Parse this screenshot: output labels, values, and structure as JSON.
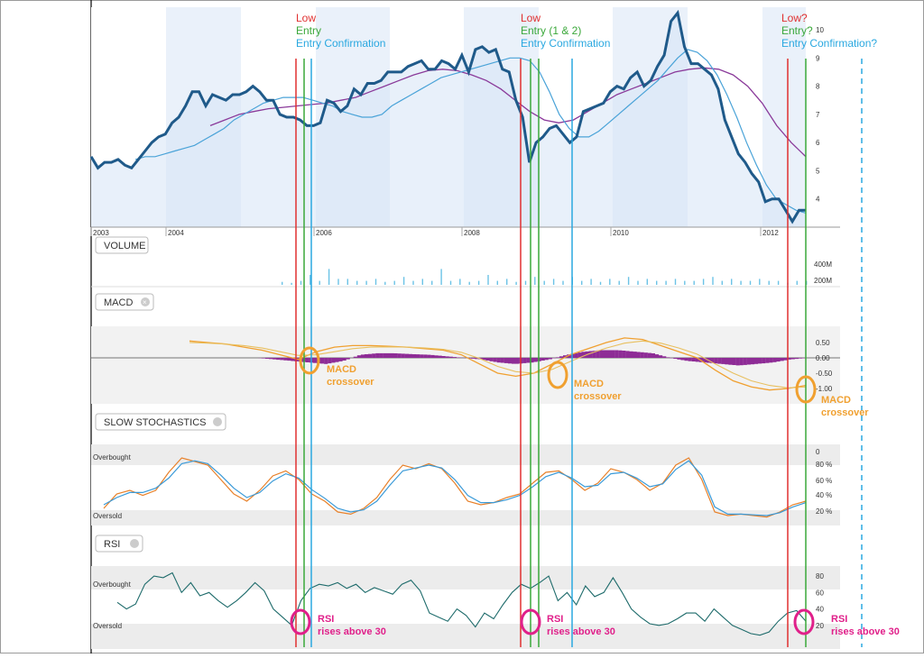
{
  "price": {
    "x_ticks": [
      "2003",
      "2004",
      "2006",
      "2008",
      "2010",
      "2012"
    ],
    "y_ticks": [
      "10",
      "9",
      "8",
      "7",
      "6",
      "5",
      "4"
    ],
    "values": [
      5.5,
      5.1,
      5.3,
      5.3,
      5.4,
      5.2,
      5.1,
      5.4,
      5.7,
      6.0,
      6.2,
      6.3,
      6.7,
      6.9,
      7.3,
      7.8,
      7.8,
      7.3,
      7.7,
      7.6,
      7.5,
      7.7,
      7.7,
      7.8,
      8.0,
      7.8,
      7.5,
      7.5,
      7.0,
      6.9,
      6.9,
      6.8,
      6.6,
      6.6,
      6.7,
      7.5,
      7.4,
      7.1,
      7.3,
      7.9,
      7.7,
      8.1,
      8.1,
      8.2,
      8.5,
      8.5,
      8.5,
      8.7,
      8.8,
      8.9,
      8.6,
      8.6,
      8.9,
      8.8,
      8.6,
      9.1,
      8.5,
      9.3,
      9.4,
      9.2,
      9.3,
      8.6,
      8.5,
      7.5,
      6.9,
      5.3,
      6.0,
      6.2,
      6.5,
      6.6,
      6.3,
      6.0,
      6.2,
      7.1,
      7.2,
      7.3,
      7.4,
      7.8,
      8.0,
      7.9,
      8.3,
      8.5,
      8.0,
      8.2,
      8.7,
      9.1,
      10.3,
      10.6,
      9.4,
      8.8,
      8.8,
      8.6,
      8.4,
      7.9,
      6.8,
      6.2,
      5.6,
      5.3,
      4.9,
      4.6,
      3.9,
      4.0,
      4.0,
      3.6,
      3.2,
      3.6,
      3.6
    ],
    "ema": [
      5.4,
      5.5,
      5.5,
      5.6,
      5.7,
      5.8,
      5.9,
      6.1,
      6.3,
      6.5,
      6.8,
      7.0,
      7.2,
      7.4,
      7.5,
      7.6,
      7.6,
      7.6,
      7.5,
      7.4,
      7.3,
      7.1,
      7.0,
      6.9,
      6.9,
      7.0,
      7.3,
      7.5,
      7.7,
      7.9,
      8.1,
      8.3,
      8.4,
      8.5,
      8.6,
      8.7,
      8.8,
      8.9,
      9.0,
      9.0,
      8.9,
      8.5,
      7.8,
      7.0,
      6.5,
      6.2,
      6.2,
      6.4,
      6.7,
      7.0,
      7.3,
      7.6,
      7.9,
      8.2,
      8.6,
      9.0,
      9.3,
      9.2,
      8.9,
      8.4,
      7.7,
      6.9,
      6.0,
      5.2,
      4.5,
      4.0,
      3.8,
      3.6,
      3.5
    ],
    "sma": [
      6.6,
      6.8,
      7.0,
      7.1,
      7.2,
      7.25,
      7.3,
      7.35,
      7.4,
      7.5,
      7.6,
      7.8,
      8.0,
      8.2,
      8.4,
      8.55,
      8.6,
      8.55,
      8.4,
      8.2,
      7.9,
      7.5,
      7.1,
      6.8,
      6.7,
      6.8,
      7.1,
      7.4,
      7.7,
      7.9,
      8.1,
      8.3,
      8.5,
      8.6,
      8.65,
      8.6,
      8.4,
      8.0,
      7.4,
      6.6,
      6.0,
      5.5
    ]
  },
  "volume": {
    "label": "VOLUME",
    "y_ticks": [
      "400M",
      "200M"
    ],
    "bars": [
      0.15,
      0.1,
      0.2,
      0.5,
      0.2,
      0.8,
      0.3,
      0.3,
      0.2,
      0.2,
      0.3,
      0.15,
      0.2,
      0.4,
      0.2,
      0.3,
      0.2,
      0.8,
      0.2,
      0.3,
      0.15,
      0.2,
      0.5,
      0.2,
      0.3,
      0.15,
      0.2,
      0.4,
      0.2,
      0.3,
      0.2,
      0.4,
      0.2,
      0.3,
      0.15,
      0.3,
      0.2,
      0.4,
      0.2,
      0.3,
      0.2,
      0.2,
      0.3,
      0.2,
      0.2,
      0.3,
      0.4,
      0.2,
      0.3,
      0.2,
      0.2,
      0.3,
      0.2,
      0.2,
      0.1,
      0.2,
      0.2
    ]
  },
  "macd": {
    "label": "MACD",
    "y_ticks": [
      "0.50",
      "0.00",
      "-0.50",
      "-1.00"
    ],
    "macd": [
      0.55,
      0.5,
      0.45,
      0.35,
      0.25,
      0.1,
      -0.05,
      0.2,
      0.35,
      0.4,
      0.4,
      0.38,
      0.35,
      0.3,
      0.25,
      0.1,
      -0.2,
      -0.5,
      -0.6,
      -0.5,
      -0.2,
      0.1,
      0.3,
      0.5,
      0.65,
      0.6,
      0.4,
      0.2,
      0.0,
      -0.4,
      -0.75,
      -0.95,
      -1.05,
      -1.0,
      -0.9
    ],
    "signal": [
      0.5,
      0.48,
      0.45,
      0.4,
      0.32,
      0.2,
      0.08,
      0.1,
      0.2,
      0.3,
      0.35,
      0.36,
      0.35,
      0.32,
      0.28,
      0.18,
      -0.02,
      -0.28,
      -0.45,
      -0.5,
      -0.38,
      -0.12,
      0.12,
      0.32,
      0.48,
      0.55,
      0.48,
      0.32,
      0.12,
      -0.2,
      -0.5,
      -0.75,
      -0.9,
      -0.98,
      -0.95
    ],
    "hist": [
      0.0,
      0.0,
      0.0,
      -0.05,
      -0.1,
      -0.15,
      -0.2,
      -0.1,
      0.1,
      0.15,
      0.15,
      0.12,
      0.1,
      0.05,
      0.0,
      -0.05,
      -0.15,
      -0.2,
      -0.15,
      -0.05,
      0.1,
      0.2,
      0.25,
      0.25,
      0.2,
      0.15,
      0.0,
      -0.1,
      -0.15,
      -0.2,
      -0.25,
      -0.2,
      -0.15,
      -0.05,
      0.0
    ]
  },
  "stoch": {
    "label": "SLOW STOCHASTICS",
    "overbought": "Overbought",
    "oversold": "Oversold",
    "y_ticks": [
      "0",
      "80 %",
      "60 %",
      "40 %",
      "20 %"
    ],
    "k": [
      20,
      40,
      45,
      38,
      45,
      70,
      90,
      85,
      80,
      60,
      40,
      30,
      45,
      65,
      72,
      60,
      40,
      30,
      15,
      12,
      20,
      35,
      60,
      80,
      75,
      82,
      75,
      55,
      30,
      25,
      28,
      35,
      40,
      55,
      70,
      72,
      60,
      45,
      55,
      75,
      70,
      60,
      45,
      55,
      80,
      90,
      60,
      15,
      10,
      12,
      10,
      8,
      15,
      25,
      30
    ],
    "d": [
      25,
      35,
      42,
      42,
      48,
      62,
      82,
      86,
      82,
      66,
      48,
      35,
      42,
      58,
      68,
      62,
      46,
      34,
      20,
      15,
      18,
      30,
      52,
      72,
      76,
      80,
      76,
      60,
      38,
      28,
      28,
      32,
      38,
      50,
      64,
      70,
      62,
      50,
      52,
      68,
      70,
      62,
      50,
      54,
      74,
      86,
      66,
      22,
      12,
      12,
      11,
      10,
      14,
      22,
      28
    ]
  },
  "rsi": {
    "label": "RSI",
    "overbought": "Overbought",
    "oversold": "Oversold",
    "y_ticks": [
      "80",
      "60",
      "40",
      "20"
    ],
    "values": [
      48,
      40,
      46,
      70,
      80,
      78,
      84,
      60,
      72,
      56,
      60,
      50,
      42,
      50,
      60,
      72,
      62,
      40,
      30,
      20,
      50,
      65,
      70,
      68,
      72,
      65,
      70,
      60,
      66,
      62,
      58,
      70,
      75,
      62,
      35,
      30,
      25,
      40,
      32,
      18,
      35,
      28,
      45,
      60,
      70,
      65,
      72,
      80,
      50,
      60,
      45,
      68,
      55,
      60,
      78,
      60,
      40,
      30,
      22,
      20,
      22,
      28,
      35,
      35,
      25,
      40,
      30,
      20,
      15,
      10,
      8,
      12,
      25,
      35,
      38,
      25
    ]
  },
  "annotations": {
    "group1": {
      "low": "Low",
      "entry": "Entry",
      "confirm": "Entry Confirmation"
    },
    "group2": {
      "low": "Low",
      "entry": "Entry (1 & 2)",
      "confirm": "Entry Confirmation"
    },
    "group3": {
      "low": "Low?",
      "entry": "Entry?",
      "confirm": "Entry Confirmation?"
    },
    "macd1": [
      "MACD",
      "crossover"
    ],
    "macd2": [
      "MACD",
      "crossover"
    ],
    "macd3": [
      "MACD",
      "crossover"
    ],
    "rsi1": [
      "RSI",
      "rises above 30"
    ],
    "rsi2": [
      "RSI",
      "rises above 30"
    ],
    "rsi3": [
      "RSI",
      "rises above 30"
    ]
  },
  "colors": {
    "price": "#1f5a8a",
    "ema": "#4aa3d8",
    "sma": "#8a3a9a",
    "low": "#e03030",
    "entry": "#3aa83a",
    "confirm": "#2aa8e0",
    "macd_note": "#f0a030",
    "rsi_note": "#e0208a"
  },
  "chart_data": [
    {
      "type": "line",
      "title": "",
      "xlabel": "",
      "ylabel": "",
      "x": [
        "2003",
        "2004",
        "2006",
        "2008",
        "2010",
        "2012"
      ],
      "ylim": [
        3,
        10.8
      ],
      "series": []
    },
    {
      "type": "bar",
      "title": "VOLUME",
      "ylim": [
        0,
        400
      ]
    },
    {
      "type": "line",
      "title": "MACD",
      "ylim": [
        -1.3,
        0.7
      ]
    },
    {
      "type": "line",
      "title": "SLOW STOCHASTICS",
      "ylim": [
        0,
        100
      ]
    },
    {
      "type": "line",
      "title": "RSI",
      "ylim": [
        0,
        100
      ]
    }
  ]
}
